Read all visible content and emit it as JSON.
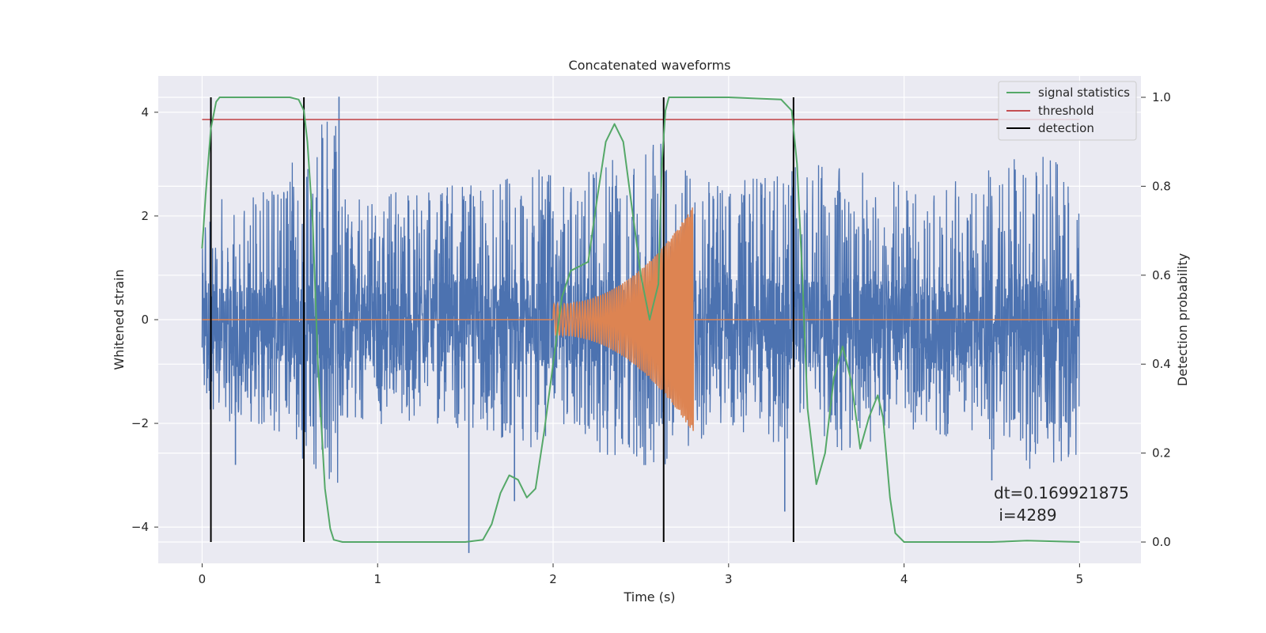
{
  "chart_data": {
    "type": "line",
    "title": "Concatenated waveforms",
    "xlabel": "Time (s)",
    "ylabel": "Whitened strain",
    "y2label": "Detection probability",
    "xlim": [
      -0.25,
      5.35
    ],
    "ylim": [
      -4.7,
      4.7
    ],
    "y2lim": [
      -0.048,
      1.048
    ],
    "xticks": [
      0,
      1,
      2,
      3,
      4,
      5
    ],
    "xtick_labels": [
      "0",
      "1",
      "2",
      "3",
      "4",
      "5"
    ],
    "yticks": [
      -4,
      -2,
      0,
      2,
      4
    ],
    "ytick_labels": [
      "−4",
      "−2",
      "0",
      "2",
      "4"
    ],
    "y2ticks": [
      0.0,
      0.2,
      0.4,
      0.6,
      0.8,
      1.0
    ],
    "y2tick_labels": [
      "0.0",
      "0.2",
      "0.4",
      "0.6",
      "0.8",
      "1.0"
    ],
    "grid": true,
    "legend_position": "top-right",
    "colors": {
      "strain": "#4c72b0",
      "template": "#dd8452",
      "signal_statistics": "#55a868",
      "threshold": "#c44e52",
      "detection": "#000000",
      "background": "#eaeaf2",
      "grid": "#ffffff"
    },
    "series": [
      {
        "key": "strain",
        "axis": "left",
        "kind": "noise",
        "x_range": [
          0,
          5
        ],
        "envelope": [
          [
            0.0,
            2.3
          ],
          [
            0.3,
            2.4
          ],
          [
            0.58,
            3.3
          ],
          [
            0.78,
            4.3
          ],
          [
            0.8,
            2.5
          ],
          [
            1.0,
            2.4
          ],
          [
            1.3,
            2.6
          ],
          [
            1.52,
            2.6
          ],
          [
            1.7,
            2.7
          ],
          [
            1.9,
            3.0
          ],
          [
            2.1,
            2.6
          ],
          [
            2.3,
            3.1
          ],
          [
            2.6,
            3.5
          ],
          [
            2.8,
            2.8
          ],
          [
            3.0,
            2.6
          ],
          [
            3.3,
            2.9
          ],
          [
            3.5,
            3.0
          ],
          [
            3.7,
            3.0
          ],
          [
            4.0,
            2.6
          ],
          [
            4.3,
            2.7
          ],
          [
            4.5,
            3.0
          ],
          [
            4.7,
            3.5
          ],
          [
            5.0,
            3.1
          ]
        ],
        "spikes": [
          [
            0.78,
            4.3
          ],
          [
            1.52,
            -4.5
          ],
          [
            3.32,
            -3.7
          ],
          [
            0.19,
            -2.8
          ],
          [
            4.5,
            -3.1
          ],
          [
            1.78,
            -3.5
          ]
        ],
        "quiet_band": [
          -1.0,
          0.8
        ]
      },
      {
        "key": "template",
        "axis": "left",
        "kind": "chirp",
        "x": [
          0.0,
          2.0,
          2.8,
          5.0
        ],
        "chirp_start": 2.0,
        "chirp_end": 2.8,
        "amplitude_start": 0.3,
        "amplitude_end": 2.2
      },
      {
        "key": "signal_statistics",
        "name": "signal statistics",
        "axis": "right",
        "x": [
          0.0,
          0.02,
          0.05,
          0.08,
          0.1,
          0.15,
          0.2,
          0.5,
          0.55,
          0.58,
          0.6,
          0.63,
          0.66,
          0.7,
          0.73,
          0.75,
          0.8,
          1.0,
          1.2,
          1.5,
          1.6,
          1.65,
          1.7,
          1.75,
          1.8,
          1.85,
          1.9,
          1.95,
          2.0,
          2.05,
          2.1,
          2.15,
          2.2,
          2.25,
          2.3,
          2.35,
          2.4,
          2.45,
          2.5,
          2.55,
          2.6,
          2.62,
          2.64,
          2.66,
          2.7,
          2.8,
          3.0,
          3.3,
          3.36,
          3.39,
          3.42,
          3.45,
          3.5,
          3.55,
          3.6,
          3.65,
          3.7,
          3.75,
          3.8,
          3.85,
          3.88,
          3.92,
          3.95,
          4.0,
          4.5,
          4.7,
          5.0
        ],
        "values": [
          0.66,
          0.78,
          0.93,
          0.99,
          1.0,
          1.0,
          1.0,
          1.0,
          0.995,
          0.97,
          0.9,
          0.72,
          0.4,
          0.12,
          0.03,
          0.005,
          0.0,
          0.0,
          0.0,
          0.0,
          0.005,
          0.04,
          0.11,
          0.15,
          0.14,
          0.1,
          0.12,
          0.25,
          0.4,
          0.55,
          0.61,
          0.62,
          0.63,
          0.77,
          0.9,
          0.94,
          0.9,
          0.75,
          0.6,
          0.5,
          0.58,
          0.85,
          0.97,
          1.0,
          1.0,
          1.0,
          1.0,
          0.995,
          0.97,
          0.85,
          0.6,
          0.3,
          0.13,
          0.2,
          0.37,
          0.44,
          0.36,
          0.21,
          0.28,
          0.33,
          0.28,
          0.1,
          0.02,
          0.0,
          0.0,
          0.003,
          0.0
        ]
      },
      {
        "key": "threshold",
        "name": "threshold",
        "axis": "right",
        "x": [
          0.0,
          5.0
        ],
        "values": [
          0.95,
          0.95
        ]
      },
      {
        "key": "detection",
        "name": "detection",
        "axis": "right",
        "kind": "vlines",
        "x": [
          0.05,
          0.58,
          2.63,
          3.37
        ],
        "y_range": [
          0.0,
          1.0
        ]
      }
    ],
    "annotation": {
      "line1": "dt=0.169921875",
      "line2": " i=4289"
    }
  }
}
